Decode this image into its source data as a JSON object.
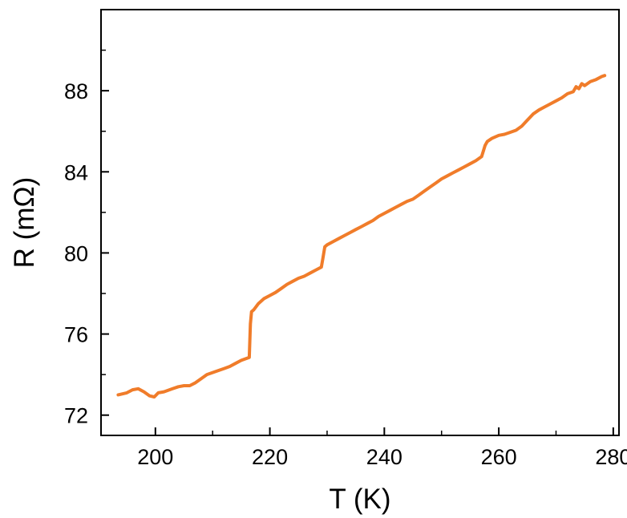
{
  "chart_data": {
    "type": "line",
    "title": "",
    "xlabel": "T (K)",
    "ylabel": "R (mΩ)",
    "xlim": [
      190.5,
      281
    ],
    "ylim": [
      71,
      92
    ],
    "xticks": [
      200,
      220,
      240,
      260,
      280
    ],
    "yticks": [
      72,
      76,
      80,
      84,
      88
    ],
    "xtick_labels": [
      "200",
      "220",
      "240",
      "260",
      "280"
    ],
    "ytick_labels": [
      "72",
      "76",
      "80",
      "84",
      "88"
    ],
    "grid": false,
    "legend": "none",
    "series": [
      {
        "color": "#F07C2A",
        "x": [
          193.5,
          195,
          196,
          197,
          198,
          199,
          199.8,
          200.5,
          201.5,
          203,
          204,
          205,
          206,
          207,
          208,
          209,
          210,
          211,
          212,
          213,
          214,
          215,
          216.4,
          216.6,
          216.8,
          217.2,
          218,
          219,
          220,
          221,
          222,
          223,
          224,
          225,
          226,
          227,
          228,
          229,
          229.3,
          229.6,
          230,
          231,
          232,
          233,
          234,
          235,
          236,
          237,
          238,
          239,
          240,
          241,
          242,
          243,
          244,
          245,
          246,
          247,
          248,
          249,
          250,
          251,
          252,
          253,
          254,
          255,
          256,
          257,
          257.6,
          258,
          258.8,
          260,
          261,
          262,
          263,
          264,
          265,
          266,
          267,
          268,
          269,
          270,
          271,
          272,
          273,
          273.5,
          274,
          274.5,
          275,
          276,
          277,
          278,
          278.5
        ],
        "y": [
          73.0,
          73.1,
          73.25,
          73.3,
          73.15,
          72.95,
          72.9,
          73.1,
          73.15,
          73.3,
          73.4,
          73.45,
          73.45,
          73.6,
          73.8,
          74.0,
          74.1,
          74.2,
          74.3,
          74.4,
          74.55,
          74.7,
          74.85,
          76.5,
          77.1,
          77.2,
          77.5,
          77.75,
          77.9,
          78.05,
          78.25,
          78.45,
          78.6,
          78.75,
          78.85,
          79.0,
          79.15,
          79.3,
          79.8,
          80.3,
          80.4,
          80.55,
          80.7,
          80.85,
          81.0,
          81.15,
          81.3,
          81.45,
          81.6,
          81.8,
          81.95,
          82.1,
          82.25,
          82.4,
          82.55,
          82.65,
          82.85,
          83.05,
          83.25,
          83.45,
          83.65,
          83.8,
          83.95,
          84.1,
          84.25,
          84.4,
          84.55,
          84.75,
          85.3,
          85.5,
          85.65,
          85.8,
          85.85,
          85.95,
          86.05,
          86.25,
          86.55,
          86.85,
          87.05,
          87.2,
          87.35,
          87.5,
          87.65,
          87.85,
          87.95,
          88.2,
          88.1,
          88.35,
          88.25,
          88.45,
          88.55,
          88.7,
          88.75
        ]
      }
    ]
  }
}
